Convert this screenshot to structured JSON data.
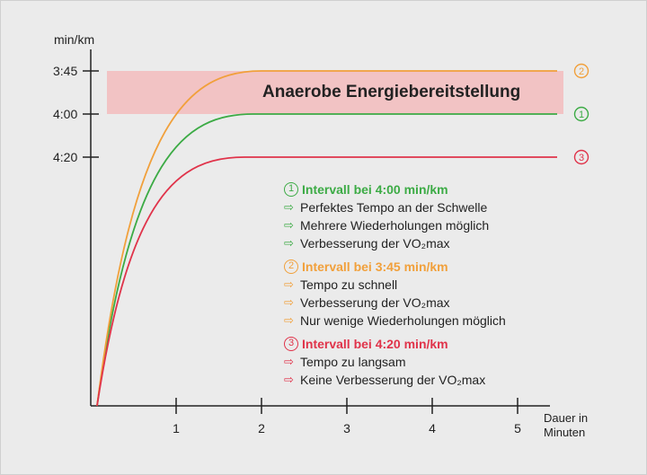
{
  "chart_data": {
    "type": "line",
    "ylabel": "min/km",
    "xlabel": "Dauer in Minuten",
    "xlabel_line1": "Dauer in",
    "xlabel_line2": "Minuten",
    "x_ticks": [
      "1",
      "2",
      "3",
      "4",
      "5"
    ],
    "y_ticks": [
      "3:45",
      "4:00",
      "4:20"
    ],
    "band": {
      "label": "Anaerobe Energiebereitstellung",
      "from": "3:45",
      "to": "4:00",
      "color": "#f2c3c4"
    },
    "series": [
      {
        "name": "1",
        "marker": "①",
        "plateau": "4:00",
        "plateau_from_minute": 1.9,
        "color": "#3cab45"
      },
      {
        "name": "2",
        "marker": "②",
        "plateau": "3:45",
        "plateau_from_minute": 2.0,
        "color": "#f1a03b"
      },
      {
        "name": "3",
        "marker": "③",
        "plateau": "4:20",
        "plateau_from_minute": 1.8,
        "color": "#e0334a"
      }
    ]
  },
  "legend": [
    {
      "marker": "1",
      "title": "Intervall bei 4:00 min/km",
      "color": "#3cab45",
      "items": [
        "Perfektes Tempo an der Schwelle",
        "Mehrere Wiederholungen möglich",
        "Verbesserung der VO₂max"
      ]
    },
    {
      "marker": "2",
      "title": "Intervall bei 3:45 min/km",
      "color": "#f1a03b",
      "items": [
        "Tempo zu schnell",
        "Verbesserung der VO₂max",
        "Nur wenige Wiederholungen möglich"
      ]
    },
    {
      "marker": "3",
      "title": "Intervall bei 4:20 min/km",
      "color": "#e0334a",
      "items": [
        "Tempo zu langsam",
        "Keine Verbesserung der VO₂max"
      ]
    }
  ],
  "arrow_glyph": "⇨"
}
